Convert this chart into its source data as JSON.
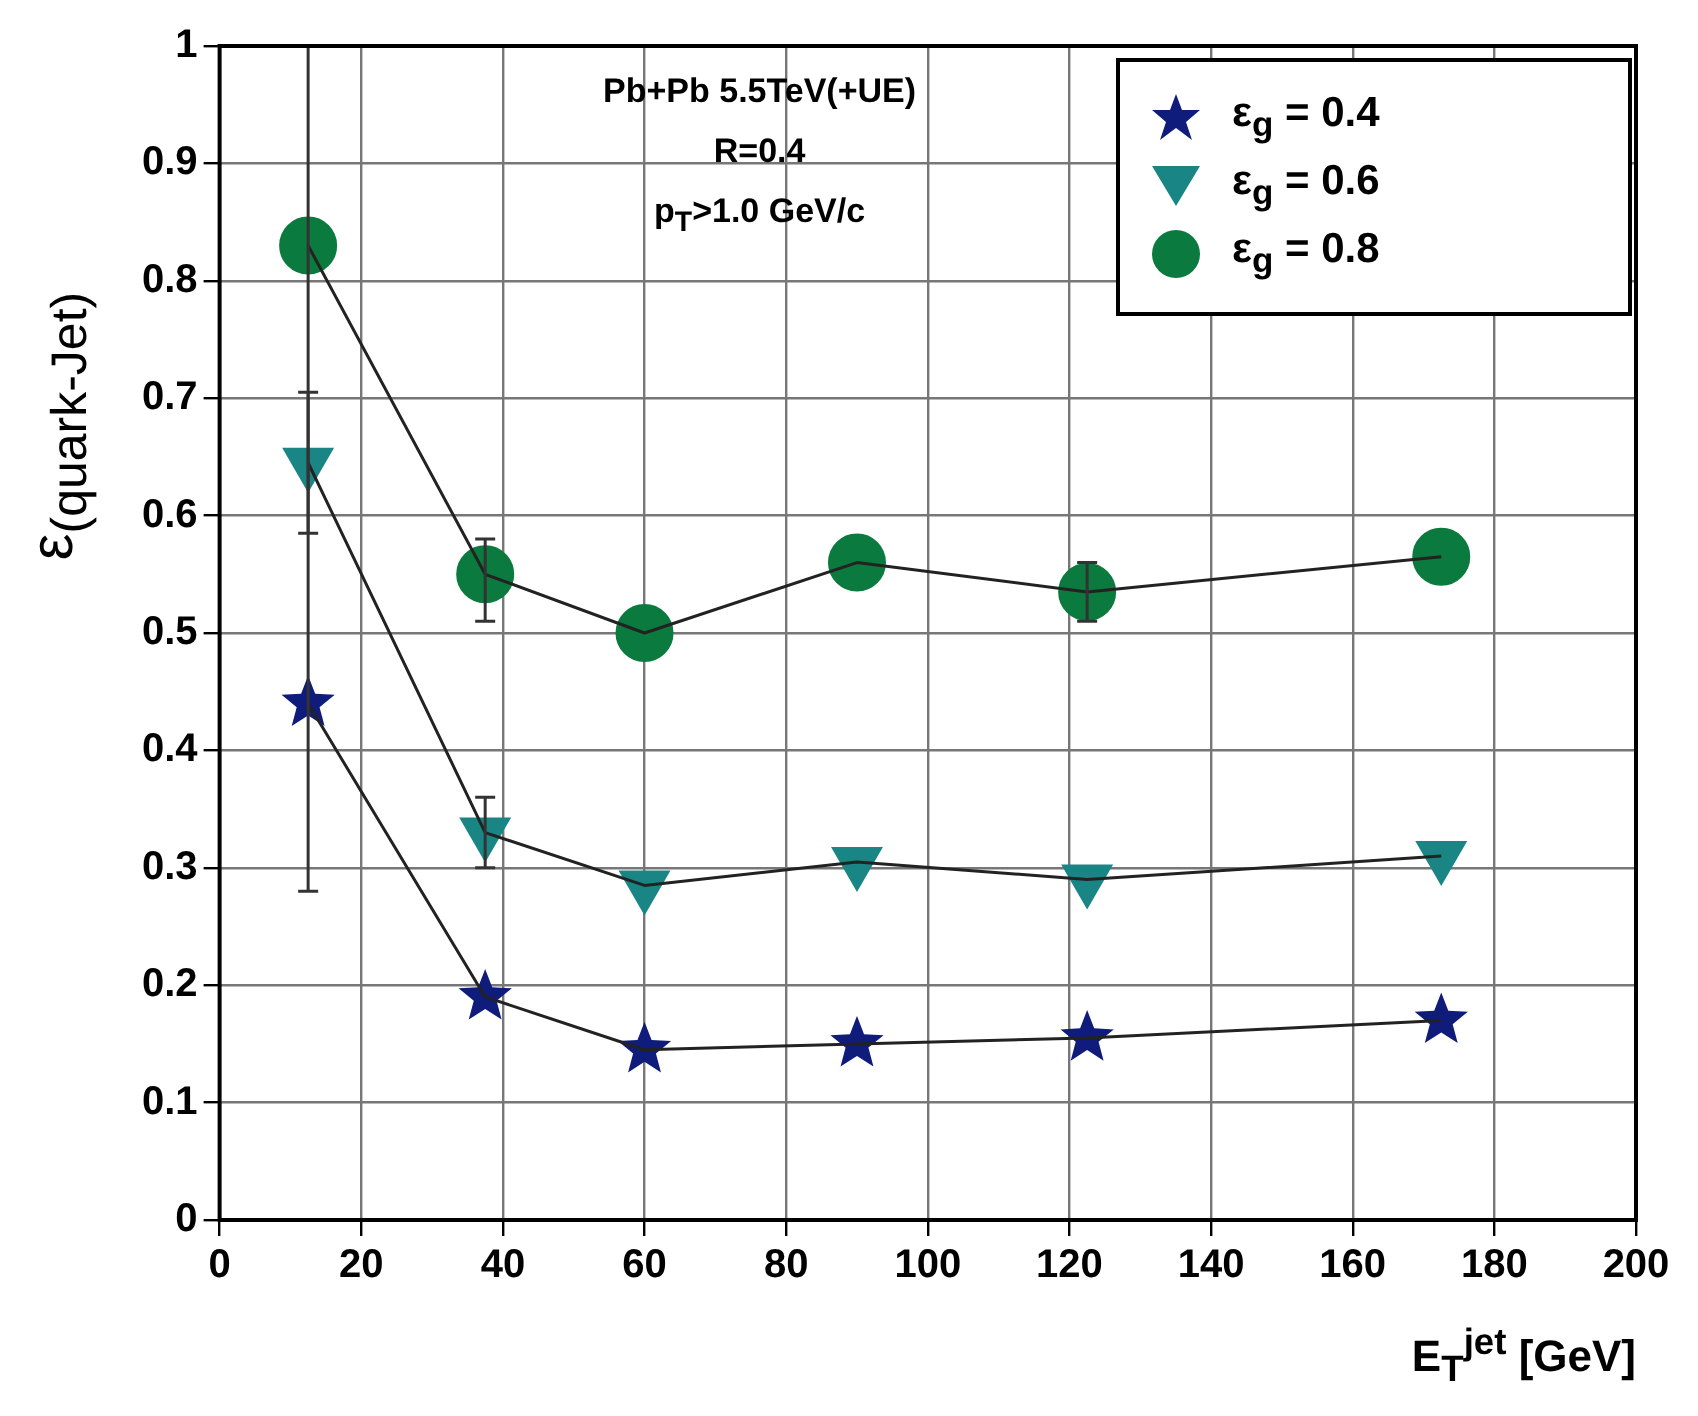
{
  "chart_data": {
    "type": "line",
    "xlabel": "E$_{T}$$^{jet}$ [GeV]",
    "ylabel": "ε$_{(quark-Jet)}$",
    "annotations": [
      "Pb+Pb 5.5TeV(+UE)",
      "R=0.4",
      "p$_{T}$>1.0 GeV/c"
    ],
    "x": [
      12.5,
      37.5,
      60,
      90,
      122.5,
      172.5
    ],
    "series": [
      {
        "name": "ε$_{g}$ = 0.4",
        "color": "#101c7c",
        "marker": "star",
        "values": [
          0.44,
          0.19,
          0.145,
          0.15,
          0.155,
          0.17
        ],
        "errors": [
          [
            0.28,
            1.0
          ],
          null,
          null,
          null,
          null,
          null
        ]
      },
      {
        "name": "ε$_{g}$ = 0.6",
        "color": "#1a8585",
        "marker": "triangle",
        "values": [
          0.645,
          0.33,
          0.285,
          0.305,
          0.29,
          0.31
        ],
        "errors": [
          0.06,
          0.03,
          null,
          null,
          null,
          null
        ]
      },
      {
        "name": "ε$_{g}$ = 0.8",
        "color": "#0b7a3e",
        "marker": "circle",
        "values": [
          0.83,
          0.55,
          0.5,
          0.56,
          0.535,
          0.565
        ],
        "errors": [
          null,
          [
            0.51,
            0.58
          ],
          null,
          null,
          0.025,
          null
        ]
      }
    ],
    "xlim": [
      0,
      200
    ],
    "xticks": [
      0,
      20,
      40,
      60,
      80,
      100,
      120,
      140,
      160,
      180,
      200
    ],
    "ylim": [
      0,
      1
    ],
    "yticks": [
      0,
      0.1,
      0.2,
      0.3,
      0.4,
      0.5,
      0.6,
      0.7,
      0.8,
      0.9,
      1
    ],
    "grid": true,
    "legend": "top right"
  }
}
